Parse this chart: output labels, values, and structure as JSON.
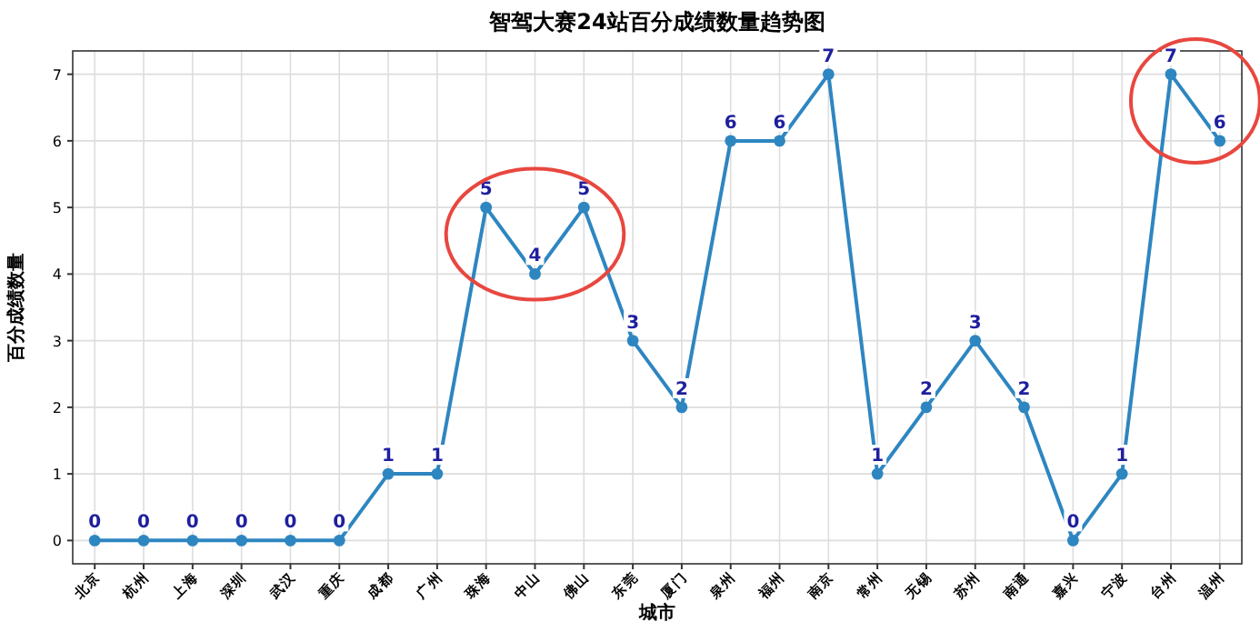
{
  "chart_data": {
    "type": "line",
    "title": "智驾大赛24站百分成绩数量趋势图",
    "xlabel": "城市",
    "ylabel": "百分成绩数量",
    "categories": [
      "北京",
      "杭州",
      "上海",
      "深圳",
      "武汉",
      "重庆",
      "成都",
      "广州",
      "珠海",
      "中山",
      "佛山",
      "东莞",
      "厦门",
      "泉州",
      "福州",
      "南京",
      "常州",
      "无锡",
      "苏州",
      "南通",
      "嘉兴",
      "宁波",
      "台州",
      "温州"
    ],
    "series": [
      {
        "color": "#2e86c1",
        "values": [
          0,
          0,
          0,
          0,
          0,
          0,
          1,
          1,
          5,
          4,
          5,
          3,
          2,
          6,
          6,
          7,
          1,
          2,
          3,
          2,
          0,
          1,
          7,
          6
        ]
      }
    ],
    "ylim": [
      -0.35,
      7.35
    ],
    "yticks": [
      0,
      1,
      2,
      3,
      4,
      5,
      6,
      7
    ],
    "grid": true,
    "marker": "circle",
    "line_style": "solid",
    "data_labels": true
  }
}
